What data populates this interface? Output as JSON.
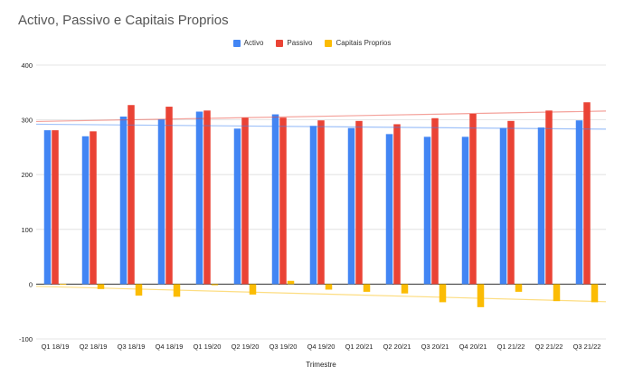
{
  "chart_data": {
    "type": "bar",
    "title": "Activo, Passivo e Capitais Proprios",
    "xlabel": "Trimestre",
    "ylabel": "",
    "ylim": [
      -100,
      400
    ],
    "yticks": [
      -100,
      0,
      100,
      200,
      300,
      400
    ],
    "grid": true,
    "legend_position": "top-center",
    "categories": [
      "Q1 18/19",
      "Q2 18/19",
      "Q3 18/19",
      "Q4 18/19",
      "Q1 19/20",
      "Q2 19/20",
      "Q3 19/20",
      "Q4 19/20",
      "Q1 20/21",
      "Q2 20/21",
      "Q3 20/21",
      "Q4 20/21",
      "Q1 21/22",
      "Q2 21/22",
      "Q3 21/22"
    ],
    "series": [
      {
        "name": "Activo",
        "color": "#4285f4",
        "values": [
          281,
          270,
          306,
          301,
          315,
          284,
          310,
          289,
          285,
          274,
          269,
          269,
          285,
          286,
          299
        ],
        "trendline": [
          292,
          283
        ]
      },
      {
        "name": "Passivo",
        "color": "#ea4335",
        "values": [
          281,
          279,
          327,
          324,
          317,
          304,
          304,
          299,
          298,
          292,
          303,
          311,
          298,
          317,
          332
        ],
        "trendline": [
          297,
          316
        ]
      },
      {
        "name": "Capitais Proprios",
        "color": "#fbbc04",
        "values": [
          0,
          -9,
          -21,
          -23,
          -2,
          -19,
          6,
          -10,
          -14,
          -17,
          -33,
          -42,
          -14,
          -31,
          -33
        ],
        "trendline": [
          -4,
          -32
        ]
      }
    ]
  }
}
